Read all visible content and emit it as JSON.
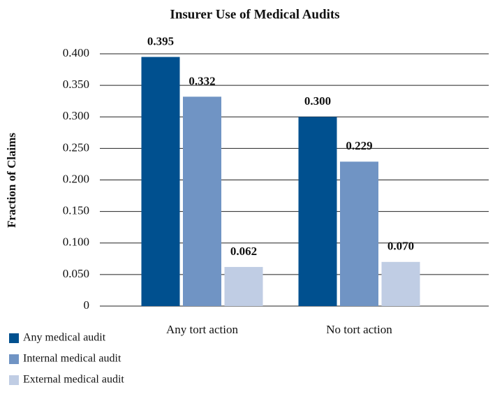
{
  "chart_data": {
    "type": "bar",
    "title": "Insurer Use of Medical Audits",
    "y_label": "Fraction of Claims",
    "categories": [
      "Any tort action",
      "No tort action"
    ],
    "series": [
      {
        "name": "Any medical audit",
        "color": "#00508f",
        "values": [
          0.395,
          0.3
        ],
        "value_labels": [
          "0.395",
          "0.300"
        ]
      },
      {
        "name": "Internal medical audit",
        "color": "#7094c4",
        "values": [
          0.332,
          0.229
        ],
        "value_labels": [
          "0.332",
          "0.229"
        ]
      },
      {
        "name": "External medical audit",
        "color": "#c0cde4",
        "values": [
          0.062,
          0.07
        ],
        "value_labels": [
          "0.062",
          "0.070"
        ]
      }
    ],
    "ylim": [
      0,
      0.4
    ],
    "yticks": [
      0,
      {
        "value": 0.05,
        "label": "0.050"
      },
      {
        "value": 0.1,
        "label": "0.100"
      },
      {
        "value": 0.15,
        "label": "0.150"
      },
      {
        "value": 0.2,
        "label": "0.200"
      },
      {
        "value": 0.25,
        "label": "0.250"
      },
      {
        "value": 0.3,
        "label": "0.300"
      },
      {
        "value": 0.35,
        "label": "0.350"
      },
      {
        "value": 0.4,
        "label": "0.400"
      }
    ],
    "grid": true
  }
}
